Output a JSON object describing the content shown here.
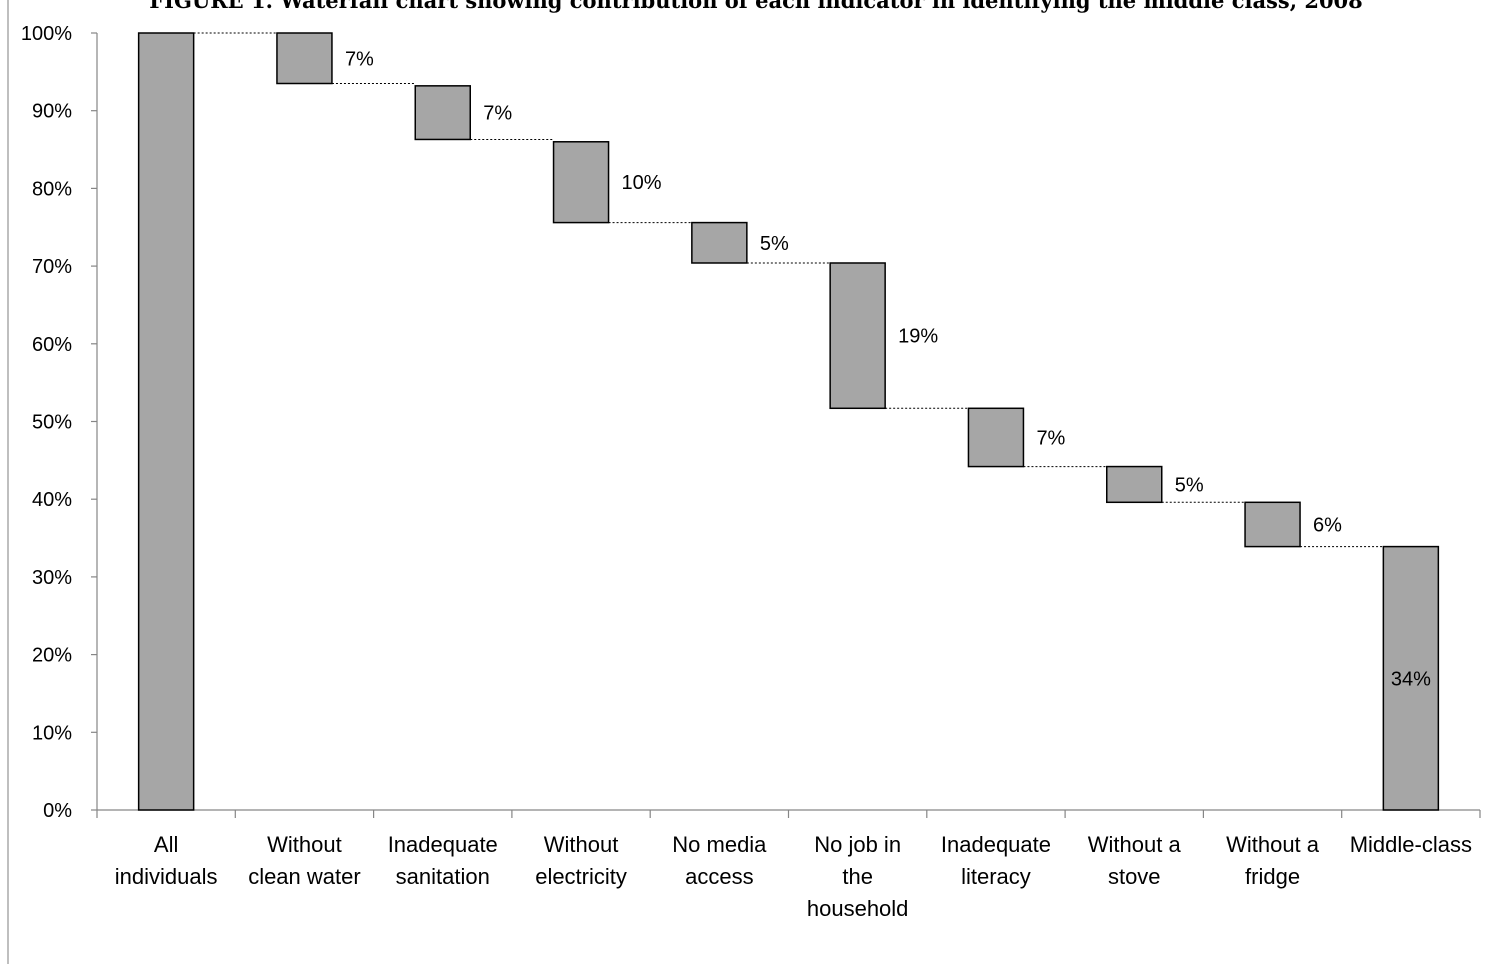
{
  "chart_data": {
    "type": "bar",
    "subtype": "waterfall",
    "title": "FIGURE 1. Waterfall chart showing contribution of each indicator in identifying the middle class, 2008",
    "xlabel": "",
    "ylabel": "",
    "ylim": [
      0,
      100
    ],
    "yticks": [
      "0%",
      "10%",
      "20%",
      "30%",
      "40%",
      "50%",
      "60%",
      "70%",
      "80%",
      "90%",
      "100%"
    ],
    "categories": [
      [
        "All",
        "individuals"
      ],
      [
        "Without",
        "clean water"
      ],
      [
        "Inadequate",
        "sanitation"
      ],
      [
        "Without",
        "electricity"
      ],
      [
        "No media",
        "access"
      ],
      [
        "No job in",
        "the",
        "household"
      ],
      [
        "Inadequate",
        "literacy"
      ],
      [
        "Without a",
        "stove"
      ],
      [
        "Without a",
        "fridge"
      ],
      [
        "Middle-class"
      ]
    ],
    "bars": [
      {
        "low": 0,
        "high": 100,
        "label": ""
      },
      {
        "low": 93.5,
        "high": 100,
        "label": "7%"
      },
      {
        "low": 86.3,
        "high": 93.2,
        "label": "7%"
      },
      {
        "low": 75.6,
        "high": 86.0,
        "label": "10%"
      },
      {
        "low": 70.4,
        "high": 75.6,
        "label": "5%"
      },
      {
        "low": 51.7,
        "high": 70.4,
        "label": "19%"
      },
      {
        "low": 44.2,
        "high": 51.7,
        "label": "7%"
      },
      {
        "low": 39.6,
        "high": 44.2,
        "label": "5%"
      },
      {
        "low": 33.9,
        "high": 39.6,
        "label": "6%"
      },
      {
        "low": 0,
        "high": 33.9,
        "label": "34%"
      }
    ],
    "bar_color": "#a6a6a6",
    "grid": false,
    "legend": "none"
  }
}
